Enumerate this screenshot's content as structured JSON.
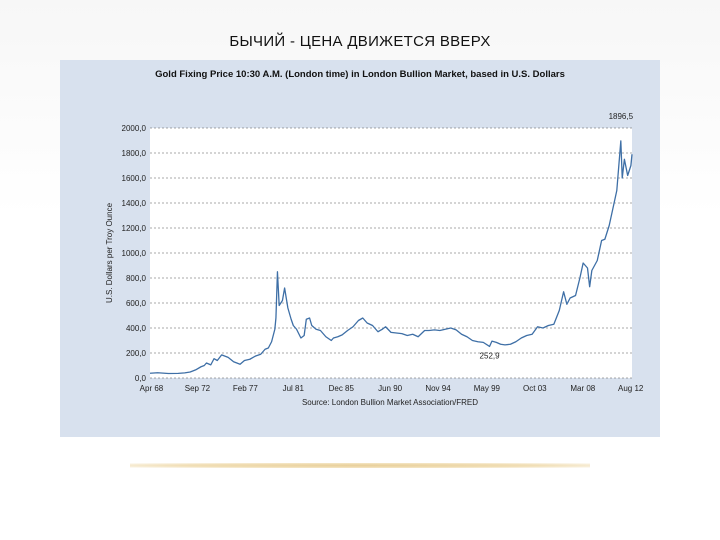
{
  "slide": {
    "title": "БЫЧИЙ - ЦЕНА ДВИЖЕТСЯ ВВЕРХ"
  },
  "colors": {
    "panel_bg": "#d8e1ee",
    "plot_bg": "#ffffff",
    "line": "#3e6fa6",
    "grid": "#555555",
    "accent_rule": "#e8cf9a"
  },
  "chart_data": {
    "type": "line",
    "title": "Gold Fixing Price 10:30 A.M. (London time) in London Bullion Market, based in U.S. Dollars",
    "ylabel": "U.S. Dollars per Troy Ounce",
    "source": "Source: London Bullion Market Association/FRED",
    "ylim": [
      0,
      2000
    ],
    "yticks": [
      "0,0",
      "200,0",
      "400,0",
      "600,0",
      "800,0",
      "1000,0",
      "1200,0",
      "1400,0",
      "1600,0",
      "1800,0",
      "2000,0"
    ],
    "xticks": [
      "Apr 68",
      "Sep 72",
      "Feb 77",
      "Jul 81",
      "Dec 85",
      "Jun 90",
      "Nov 94",
      "May 99",
      "Oct 03",
      "Mar 08",
      "Aug 12"
    ],
    "grid": "horizontal-dashed",
    "annotations": [
      {
        "label": "1896,5",
        "x": 2011.67,
        "y": 1896.5
      },
      {
        "label": "252,9",
        "x": 1999.58,
        "y": 252.9
      }
    ],
    "series": [
      {
        "x": [
          1968.3,
          1969.0,
          1970.0,
          1970.9,
          1971.5,
          1972.0,
          1972.5,
          1973.0,
          1973.3,
          1973.5,
          1973.9,
          1974.2,
          1974.5,
          1974.9,
          1975.5,
          1976.0,
          1976.6,
          1977.0,
          1977.5,
          1978.0,
          1978.5,
          1978.9,
          1979.2,
          1979.5,
          1979.8,
          1979.9,
          1980.04,
          1980.2,
          1980.5,
          1980.7,
          1981.0,
          1981.3,
          1981.5,
          1981.8,
          1982.2,
          1982.5,
          1982.7,
          1983.0,
          1983.2,
          1983.6,
          1984.0,
          1984.5,
          1985.0,
          1985.2,
          1985.6,
          1986.0,
          1986.5,
          1987.0,
          1987.5,
          1987.9,
          1988.3,
          1988.8,
          1989.3,
          1989.7,
          1990.0,
          1990.5,
          1991.0,
          1991.5,
          1992.0,
          1992.5,
          1993.0,
          1993.6,
          1994.0,
          1994.5,
          1995.0,
          1995.5,
          1996.0,
          1996.5,
          1997.0,
          1997.5,
          1998.0,
          1998.5,
          1999.0,
          1999.58,
          1999.8,
          2000.2,
          2000.6,
          2001.0,
          2001.5,
          2002.0,
          2002.5,
          2003.0,
          2003.5,
          2004.0,
          2004.5,
          2005.0,
          2005.5,
          2006.0,
          2006.4,
          2006.7,
          2007.0,
          2007.5,
          2007.9,
          2008.2,
          2008.6,
          2008.8,
          2009.0,
          2009.5,
          2009.9,
          2010.2,
          2010.6,
          2011.0,
          2011.3,
          2011.67,
          2011.8,
          2012.0,
          2012.3,
          2012.6,
          2012.7
        ],
        "y": [
          38,
          42,
          36,
          37,
          41,
          48,
          65,
          90,
          100,
          120,
          105,
          155,
          140,
          185,
          165,
          130,
          110,
          140,
          150,
          175,
          190,
          230,
          240,
          290,
          390,
          480,
          850,
          580,
          620,
          720,
          560,
          470,
          420,
          390,
          320,
          340,
          470,
          480,
          420,
          390,
          380,
          330,
          300,
          320,
          330,
          345,
          380,
          410,
          460,
          480,
          440,
          420,
          370,
          390,
          410,
          365,
          360,
          355,
          340,
          350,
          330,
          380,
          380,
          385,
          380,
          390,
          400,
          385,
          350,
          330,
          300,
          290,
          285,
          252.9,
          295,
          285,
          270,
          265,
          270,
          290,
          320,
          340,
          350,
          410,
          400,
          420,
          430,
          540,
          690,
          590,
          640,
          660,
          800,
          920,
          880,
          730,
          860,
          940,
          1100,
          1110,
          1220,
          1380,
          1500,
          1896.5,
          1600,
          1750,
          1620,
          1700,
          1790
        ]
      }
    ]
  }
}
